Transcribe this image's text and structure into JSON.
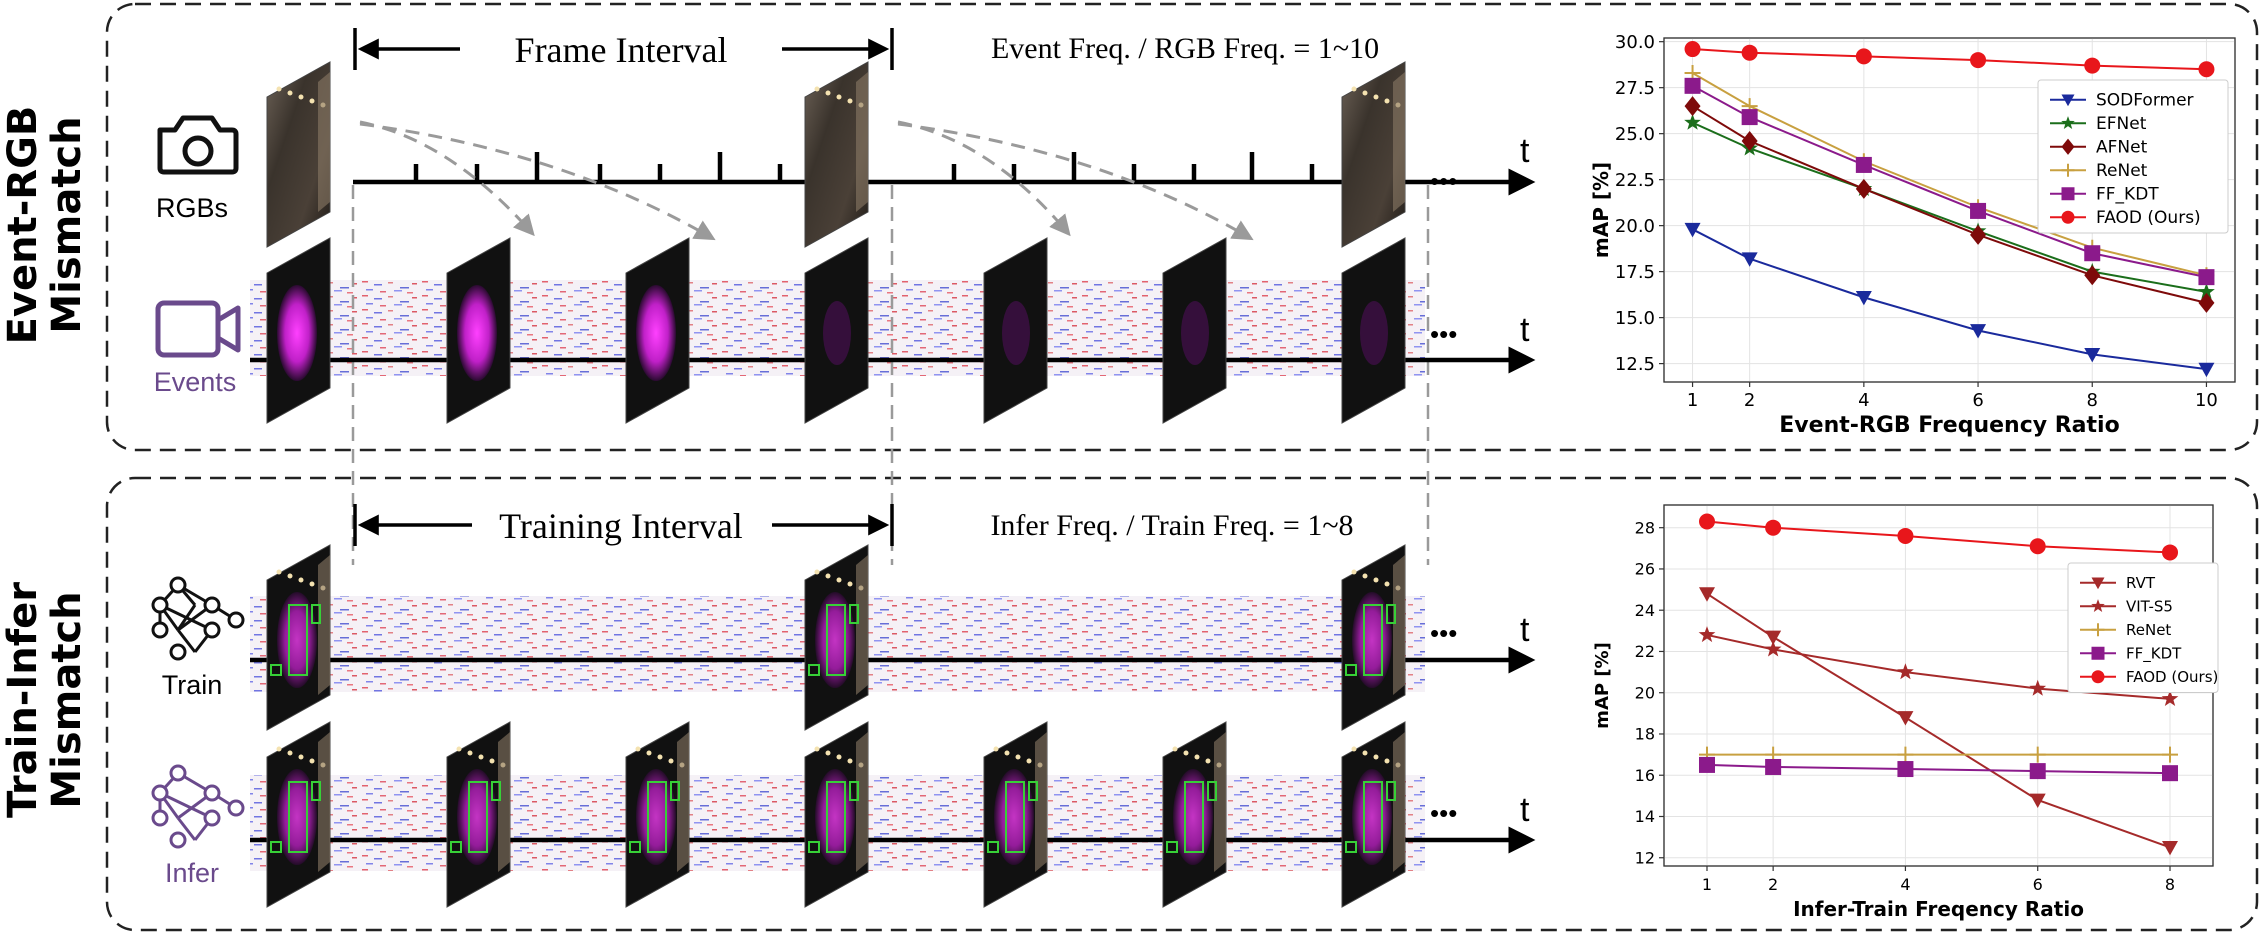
{
  "top": {
    "row_label_line1": "Event-RGB",
    "row_label_line2": "Mismatch",
    "rgb_label": "RGBs",
    "event_label": "Events",
    "interval_label": "Frame Interval",
    "freq_label": "Event Freq. / RGB Freq. = 1~10",
    "ellipsis": "•••",
    "time_label": "t",
    "camera_icon": "camera-icon",
    "video_icon": "video-camera-icon"
  },
  "bottom": {
    "row_label_line1": "Train-Infer",
    "row_label_line2": "Mismatch",
    "train_label": "Train",
    "infer_label": "Infer",
    "interval_label": "Training Interval",
    "freq_label": "Infer Freq. / Train Freq. = 1~8",
    "ellipsis": "•••",
    "time_label": "t",
    "network_icon": "neural-network-icon"
  },
  "colors": {
    "accent_purple": "#6a4a8c",
    "red": "#e8161b",
    "darkred": "#a52a2a",
    "navy": "#1a2a9c",
    "green": "#1b6e1b",
    "maroon": "#7e0a0a",
    "gold": "#c8a040",
    "purple": "#8b1a8b"
  },
  "chart_data": [
    {
      "type": "line",
      "xlabel": "Event-RGB Frequency Ratio",
      "ylabel": "mAP [%]",
      "x": [
        1,
        2,
        4,
        6,
        8,
        10
      ],
      "xticks": [
        1,
        2,
        4,
        6,
        8,
        10
      ],
      "xlim": [
        0.5,
        10.5
      ],
      "ylim": [
        11.5,
        30.2
      ],
      "yticks": [
        12.5,
        15.0,
        17.5,
        20.0,
        22.5,
        25.0,
        27.5,
        30.0
      ],
      "ytick_labels": [
        "12.5",
        "15.0",
        "17.5",
        "20.0",
        "22.5",
        "25.0",
        "27.5",
        "30.0"
      ],
      "grid": true,
      "legend_position": "upper-right",
      "series": [
        {
          "name": "SODFormer",
          "values": [
            19.8,
            18.2,
            16.1,
            14.3,
            13.0,
            12.2
          ],
          "color": "#1a2a9c",
          "marker": "triangle-down"
        },
        {
          "name": "EFNet",
          "values": [
            25.6,
            24.2,
            22.0,
            19.7,
            17.5,
            16.4
          ],
          "color": "#1b6e1b",
          "marker": "star"
        },
        {
          "name": "AFNet",
          "values": [
            26.5,
            24.6,
            22.0,
            19.5,
            17.3,
            15.8
          ],
          "color": "#7e0a0a",
          "marker": "diamond"
        },
        {
          "name": "ReNet",
          "values": [
            28.3,
            26.5,
            23.5,
            21.0,
            18.8,
            17.3
          ],
          "color": "#c8a040",
          "marker": "plus"
        },
        {
          "name": "FF_KDT",
          "values": [
            27.6,
            25.9,
            23.3,
            20.8,
            18.5,
            17.2
          ],
          "color": "#8b1a8b",
          "marker": "square"
        },
        {
          "name": "FAOD (Ours)",
          "values": [
            29.6,
            29.4,
            29.2,
            29.0,
            28.7,
            28.5
          ],
          "color": "#e8161b",
          "marker": "circle"
        }
      ]
    },
    {
      "type": "line",
      "xlabel": "Infer-Train Freqency Ratio",
      "ylabel": "mAP [%]",
      "x": [
        1,
        2,
        4,
        6,
        8
      ],
      "xticks": [
        1,
        2,
        4,
        6,
        8
      ],
      "xlim": [
        0.35,
        8.65
      ],
      "ylim": [
        11.6,
        29.1
      ],
      "yticks": [
        12,
        14,
        16,
        18,
        20,
        22,
        24,
        26,
        28
      ],
      "ytick_labels": [
        "12",
        "14",
        "16",
        "18",
        "20",
        "22",
        "24",
        "26",
        "28"
      ],
      "grid": true,
      "legend_position": "lower-right",
      "series": [
        {
          "name": "RVT",
          "values": [
            24.8,
            22.7,
            18.8,
            14.8,
            12.5
          ],
          "color": "#a52a2a",
          "marker": "triangle-down"
        },
        {
          "name": "VIT-S5",
          "values": [
            22.8,
            22.1,
            21.0,
            20.2,
            19.7
          ],
          "color": "#a52a2a",
          "marker": "star"
        },
        {
          "name": "ReNet",
          "values": [
            17.0,
            17.0,
            17.0,
            17.0,
            17.0
          ],
          "color": "#c8a040",
          "marker": "plus"
        },
        {
          "name": "FF_KDT",
          "values": [
            16.5,
            16.4,
            16.3,
            16.2,
            16.1
          ],
          "color": "#8b1a8b",
          "marker": "square"
        },
        {
          "name": "FAOD (Ours)",
          "values": [
            28.3,
            28.0,
            27.6,
            27.1,
            26.8
          ],
          "color": "#e8161b",
          "marker": "circle"
        }
      ]
    }
  ]
}
